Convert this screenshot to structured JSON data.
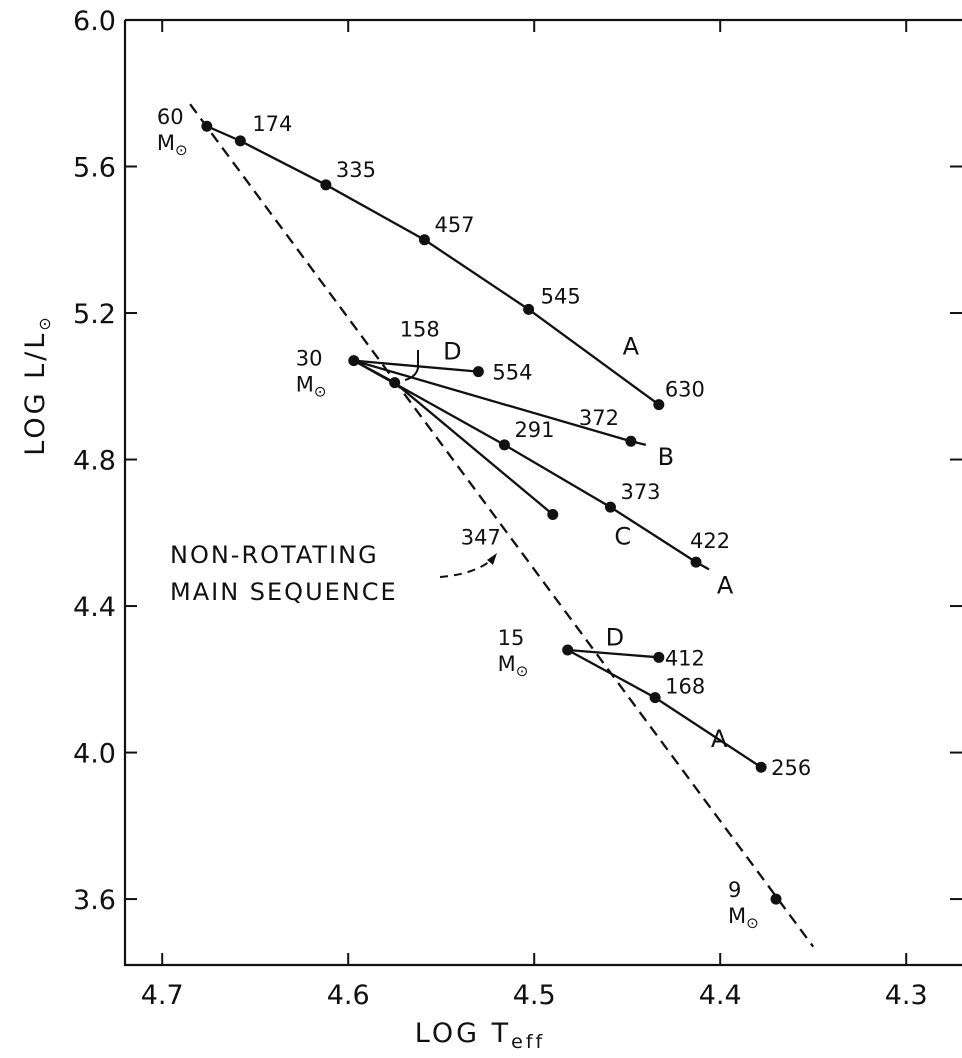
{
  "chart_data": {
    "type": "line",
    "xlabel": "LOG T",
    "xlabel_sub": "eff",
    "ylabel_main": "LOG L/L",
    "ylabel_sun": "⊙",
    "xlim": [
      4.72,
      4.27
    ],
    "ylim": [
      3.42,
      6.0
    ],
    "x_reversed": true,
    "grid": false,
    "xticks": [
      "4.7",
      "4.6",
      "4.5",
      "4.4",
      "4.3"
    ],
    "yticks": [
      "6.0",
      "5.6",
      "5.2",
      "4.8",
      "4.4",
      "4.0",
      "3.6"
    ],
    "main_sequence": {
      "label_lines": [
        "NON-ROTATING",
        "MAIN SEQUENCE"
      ],
      "x": [
        4.685,
        4.35
      ],
      "y": [
        5.77,
        3.47
      ]
    },
    "models": [
      {
        "mass_num": "60",
        "mass_unit": "M",
        "sun": "⊙",
        "x": 4.676,
        "y": 5.71
      },
      {
        "mass_num": "30",
        "mass_unit": "M",
        "sun": "⊙",
        "x": 4.597,
        "y": 5.07
      },
      {
        "mass_num": "15",
        "mass_unit": "M",
        "sun": "⊙",
        "x": 4.482,
        "y": 4.28
      },
      {
        "mass_num": "9",
        "mass_unit": "M",
        "sun": "⊙",
        "x": 4.37,
        "y": 3.6
      }
    ],
    "series": [
      {
        "name": "A",
        "x": [
          4.676,
          4.658,
          4.612,
          4.559,
          4.503,
          4.433
        ],
        "y": [
          5.71,
          5.67,
          5.55,
          5.4,
          5.21,
          4.95
        ],
        "labels": [
          "",
          "174",
          "335",
          "457",
          "545",
          "630"
        ],
        "ext_x": 4.433,
        "ext_y": 4.95
      },
      {
        "name": "B",
        "x": [
          4.597,
          4.448
        ],
        "y": [
          5.07,
          4.85
        ],
        "labels": [
          "",
          "372"
        ],
        "ext_x": 4.44,
        "ext_y": 4.84
      },
      {
        "name": "C",
        "x": [
          4.597,
          4.575,
          4.49
        ],
        "y": [
          5.07,
          5.01,
          4.65
        ],
        "labels": [
          "",
          "158",
          "347"
        ],
        "ext_x": 4.49,
        "ext_y": 4.65
      },
      {
        "name": "A",
        "x": [
          4.597,
          4.516,
          4.459,
          4.413
        ],
        "y": [
          5.07,
          4.84,
          4.67,
          4.52
        ],
        "labels": [
          "",
          "291",
          "373",
          "422"
        ],
        "ext_x": 4.406,
        "ext_y": 4.5
      },
      {
        "name": "D",
        "x": [
          4.597,
          4.53
        ],
        "y": [
          5.07,
          5.04
        ],
        "labels": [
          "",
          "554"
        ],
        "ext_x": 4.53,
        "ext_y": 5.04
      },
      {
        "name": "D",
        "x": [
          4.482,
          4.433
        ],
        "y": [
          4.28,
          4.26
        ],
        "labels": [
          "",
          "412"
        ],
        "ext_x": 4.433,
        "ext_y": 4.26
      },
      {
        "name": "A",
        "x": [
          4.482,
          4.435,
          4.378
        ],
        "y": [
          4.28,
          4.15,
          3.96
        ],
        "labels": [
          "",
          "168",
          "256"
        ],
        "ext_x": 4.378,
        "ext_y": 3.96
      }
    ]
  }
}
